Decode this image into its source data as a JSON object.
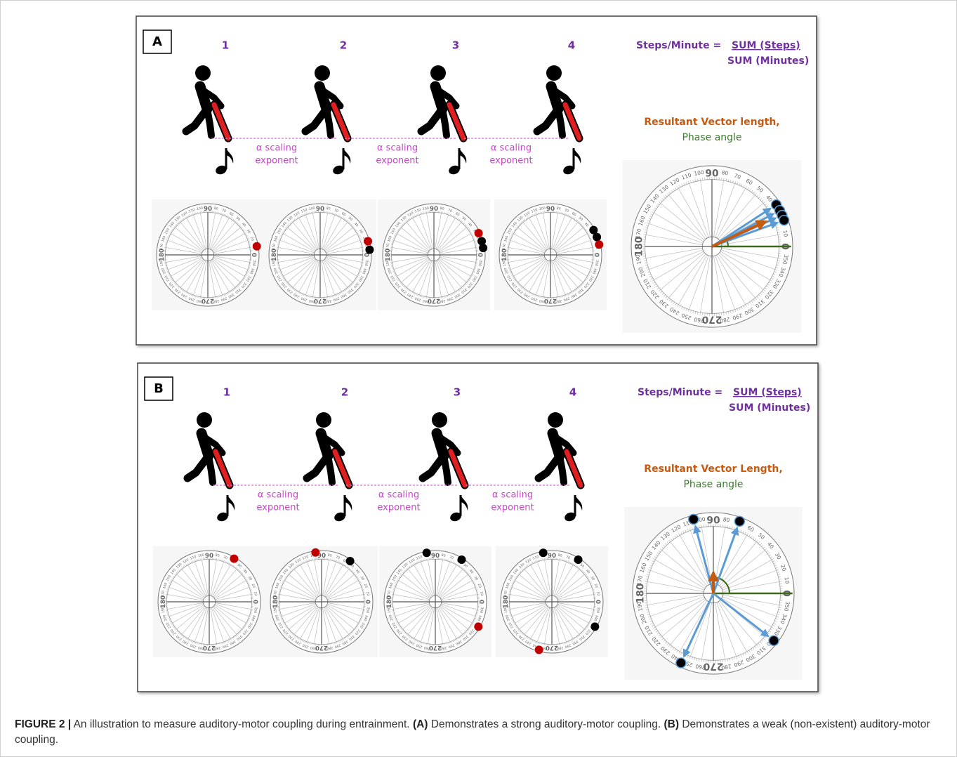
{
  "dial_labels": [
    "0",
    "10",
    "20",
    "30",
    "40",
    "50",
    "60",
    "70",
    "80",
    "90",
    "100",
    "110",
    "120",
    "130",
    "140",
    "150",
    "160",
    "170",
    "180",
    "190",
    "200",
    "210",
    "220",
    "230",
    "240",
    "250",
    "260",
    "270",
    "280",
    "290",
    "300",
    "310",
    "320",
    "330",
    "340",
    "350"
  ],
  "panels": [
    {
      "label": "A",
      "steps": [
        "1",
        "2",
        "3",
        "4"
      ],
      "connectors": [
        {
          "line1": "α scaling",
          "line2": "exponent"
        },
        {
          "line1": "α scaling",
          "line2": "exponent"
        },
        {
          "line1": "α scaling",
          "line2": "exponent"
        }
      ],
      "formula": {
        "lhs": "Steps/Minute =",
        "numerator": "SUM (Steps)",
        "denominator": "SUM (Minutes)"
      },
      "metric_title": "Resultant Vector length,",
      "metric_subtitle": "Phase angle",
      "dials": [
        {
          "dots": [
            {
              "angle": 10,
              "color": "#c00000"
            }
          ]
        },
        {
          "dots": [
            {
              "angle": 16,
              "color": "#c00000"
            },
            {
              "angle": 6,
              "color": "#000000"
            }
          ]
        },
        {
          "dots": [
            {
              "angle": 26,
              "color": "#c00000"
            },
            {
              "angle": 16,
              "color": "#000000"
            },
            {
              "angle": 8,
              "color": "#000000"
            }
          ]
        },
        {
          "dots": [
            {
              "angle": 30,
              "color": "#000000"
            },
            {
              "angle": 21,
              "color": "#000000"
            },
            {
              "angle": 12,
              "color": "#c00000"
            }
          ]
        }
      ],
      "summary": {
        "vectors": [
          33,
          28,
          24,
          20
        ],
        "resultant_angle": 25,
        "resultant_length": 0.85
      }
    },
    {
      "label": "B",
      "steps": [
        "1",
        "2",
        "3",
        "4"
      ],
      "connectors": [
        {
          "line1": "α scaling",
          "line2": "exponent"
        },
        {
          "line1": "α scaling",
          "line2": "exponent"
        },
        {
          "line1": "α scaling",
          "line2": "exponent"
        }
      ],
      "formula": {
        "lhs": "Steps/Minute =",
        "numerator": "SUM (Steps)",
        "denominator": "SUM (Minutes)"
      },
      "metric_title": "Resultant Vector Length,",
      "metric_subtitle": "Phase angle",
      "dials": [
        {
          "dots": [
            {
              "angle": 60,
              "color": "#c00000"
            }
          ]
        },
        {
          "dots": [
            {
              "angle": 97,
              "color": "#c00000"
            },
            {
              "angle": 55,
              "color": "#000000"
            }
          ]
        },
        {
          "dots": [
            {
              "angle": 100,
              "color": "#000000"
            },
            {
              "angle": 58,
              "color": "#000000"
            },
            {
              "angle": 330,
              "color": "#c00000"
            }
          ]
        },
        {
          "dots": [
            {
              "angle": 100,
              "color": "#000000"
            },
            {
              "angle": 58,
              "color": "#000000"
            },
            {
              "angle": 330,
              "color": "#000000"
            },
            {
              "angle": 255,
              "color": "#c00000"
            }
          ]
        }
      ],
      "summary": {
        "vectors": [
          105,
          70,
          322,
          245
        ],
        "resultant_angle": 90,
        "resultant_length": 0.3
      }
    }
  ],
  "caption": {
    "figure": "FIGURE 2 |",
    "text": "An illustration to measure auditory-motor coupling during entrainment.",
    "a_label": "(A)",
    "a_text": "Demonstrates a strong auditory-motor coupling.",
    "b_label": "(B)",
    "b_text": "Demonstrates a weak (non-existent) auditory-motor coupling."
  }
}
